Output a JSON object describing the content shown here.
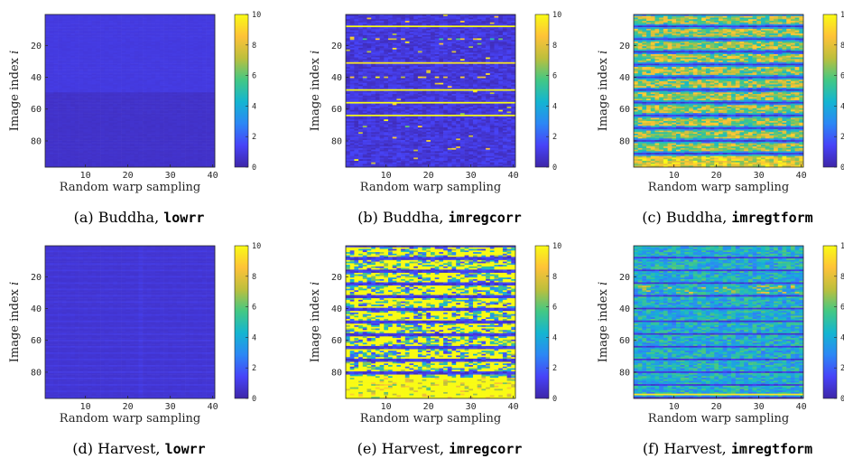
{
  "figure": {
    "colorbar_ticks": [
      "0",
      "2",
      "4",
      "6",
      "8",
      "10"
    ],
    "colormap": [
      "#3e26a8",
      "#4743f8",
      "#2c87f5",
      "#14b5d1",
      "#43c884",
      "#bdbf3d",
      "#fec238",
      "#f9fb15"
    ]
  },
  "chart_data": [
    {
      "type": "heatmap",
      "caption_prefix": "(a) Buddha,",
      "caption_code": "lowrr",
      "xlabel": "Random warp sampling",
      "ylabel_prefix": "Image index",
      "ylabel_var": "i",
      "x_ticks": [
        "10",
        "20",
        "30",
        "40"
      ],
      "y_ticks": [
        "20",
        "40",
        "60",
        "80"
      ],
      "x_range": [
        1,
        40
      ],
      "y_range": [
        1,
        96
      ],
      "color_range": [
        0,
        10
      ],
      "pattern": "lowrr_buddha",
      "summary": "values near 0.8-1.1 for rows 1-49, near 0.5-0.7 for rows 50-96"
    },
    {
      "type": "heatmap",
      "caption_prefix": "(b) Buddha,",
      "caption_code": "imregcorr",
      "xlabel": "Random warp sampling",
      "ylabel_prefix": "Image index",
      "ylabel_var": "i",
      "x_ticks": [
        "10",
        "20",
        "30",
        "40"
      ],
      "y_ticks": [
        "20",
        "40",
        "60",
        "80"
      ],
      "x_range": [
        1,
        40
      ],
      "y_range": [
        1,
        96
      ],
      "color_range": [
        0,
        10
      ],
      "pattern": "imregcorr_buddha",
      "bright_rows": [
        8,
        31,
        48,
        56,
        64
      ],
      "summary": "mostly low (0-2); a few rows saturated at 10; sparse outliers around rows 16 and 40"
    },
    {
      "type": "heatmap",
      "caption_prefix": "(c) Buddha,",
      "caption_code": "imregtform",
      "xlabel": "Random warp sampling",
      "ylabel_prefix": "Image index",
      "ylabel_var": "i",
      "x_ticks": [
        "10",
        "20",
        "30",
        "40"
      ],
      "y_ticks": [
        "20",
        "40",
        "60",
        "80"
      ],
      "x_range": [
        1,
        40
      ],
      "y_range": [
        1,
        96
      ],
      "color_range": [
        0,
        10
      ],
      "pattern": "imregtform_buddha",
      "summary": "horizontal bands of mid-to-high values (5-9) alternating with low rows every ~8 images"
    },
    {
      "type": "heatmap",
      "caption_prefix": "(d) Harvest,",
      "caption_code": "lowrr",
      "xlabel": "Random warp sampling",
      "ylabel_prefix": "Image index",
      "ylabel_var": "i",
      "x_ticks": [
        "10",
        "20",
        "30",
        "40"
      ],
      "y_ticks": [
        "20",
        "40",
        "60",
        "80"
      ],
      "x_range": [
        1,
        40
      ],
      "y_range": [
        1,
        96
      ],
      "color_range": [
        0,
        10
      ],
      "pattern": "lowrr_harvest",
      "summary": "uniformly low values (0.5-1.1) with faint horizontal striping"
    },
    {
      "type": "heatmap",
      "caption_prefix": "(e) Harvest,",
      "caption_code": "imregcorr",
      "xlabel": "Random warp sampling",
      "ylabel_prefix": "Image index",
      "ylabel_var": "i",
      "x_ticks": [
        "10",
        "20",
        "30",
        "40"
      ],
      "y_ticks": [
        "20",
        "40",
        "60",
        "80"
      ],
      "x_range": [
        1,
        40
      ],
      "y_range": [
        1,
        96
      ],
      "color_range": [
        0,
        10
      ],
      "pattern": "imregcorr_harvest",
      "summary": "many rows saturated at 10, interleaved with low rows; bottom rows mostly saturated"
    },
    {
      "type": "heatmap",
      "caption_prefix": "(f) Harvest,",
      "caption_code": "imregtform",
      "xlabel": "Random warp sampling",
      "ylabel_prefix": "Image index",
      "ylabel_var": "i",
      "x_ticks": [
        "10",
        "20",
        "30",
        "40"
      ],
      "y_ticks": [
        "20",
        "40",
        "60",
        "80"
      ],
      "x_range": [
        1,
        40
      ],
      "y_range": [
        1,
        96
      ],
      "color_range": [
        0,
        10
      ],
      "pattern": "imregtform_harvest",
      "bright_rows": [
        94
      ],
      "summary": "mid values (3-5) banded with low rows every ~8 images; yellow-green streaks near rows 28 and 94"
    }
  ]
}
